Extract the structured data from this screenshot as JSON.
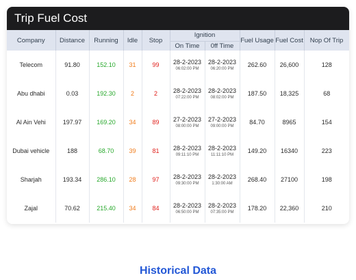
{
  "card": {
    "title": "Trip Fuel Cost"
  },
  "columns": {
    "company": "Company",
    "distance": "Distance",
    "running": "Running",
    "idle": "Idle",
    "stop": "Stop",
    "ignition": "Ignition",
    "on_time": "On Time",
    "off_time": "0ff Time",
    "fuel_usage": "Fuel Usage",
    "fuel_cost": "Fuel Cost",
    "nop_of_trip": "Nop Of Trip"
  },
  "colors": {
    "running": "#27a82b",
    "idle": "#f07b1a",
    "stop": "#e0201b",
    "accent": "#2257d6"
  },
  "rows": [
    {
      "company": "Telecom",
      "distance": "91.80",
      "running": "152.10",
      "idle": "31",
      "stop": "99",
      "on_date": "28-2-2023",
      "on_time": "06:02:00 PM",
      "off_date": "28-2-2023",
      "off_time": "06:20:00 PM",
      "fuel_usage": "262.60",
      "fuel_cost": "26,600",
      "trips": "128"
    },
    {
      "company": "Abu dhabi",
      "distance": "0.03",
      "running": "192.30",
      "idle": "2",
      "stop": "2",
      "on_date": "28-2-2023",
      "on_time": "07:22:00 PM",
      "off_date": "28-2-2023",
      "off_time": "08:02:00 PM",
      "fuel_usage": "187.50",
      "fuel_cost": "18,325",
      "trips": "68"
    },
    {
      "company": "Al Ain Vehi",
      "distance": "197.97",
      "running": "169.20",
      "idle": "34",
      "stop": "89",
      "on_date": "27-2-2023",
      "on_time": "08:00:00 PM",
      "off_date": "27-2-2023",
      "off_time": "09:00:00 PM",
      "fuel_usage": "84.70",
      "fuel_cost": "8965",
      "trips": "154"
    },
    {
      "company": "Dubai vehicle",
      "distance": "188",
      "running": "68.70",
      "idle": "39",
      "stop": "81",
      "on_date": "28-2-2023",
      "on_time": "09:11:10 PM",
      "off_date": "28-2-2023",
      "off_time": "11:11:10 PM",
      "fuel_usage": "149.20",
      "fuel_cost": "16340",
      "trips": "223"
    },
    {
      "company": "Sharjah",
      "distance": "193.34",
      "running": "286.10",
      "idle": "28",
      "stop": "97",
      "on_date": "28-2-2023",
      "on_time": "09:30:00 PM",
      "off_date": "28-2-2023",
      "off_time": "1:30:00 AM",
      "fuel_usage": "268.40",
      "fuel_cost": "27100",
      "trips": "198"
    },
    {
      "company": "Zajal",
      "distance": "70.62",
      "running": "215.40",
      "idle": "34",
      "stop": "84",
      "on_date": "28-2-2023",
      "on_time": "06:50:00 PM",
      "off_date": "28-2-2023",
      "off_time": "07:35:00 PM",
      "fuel_usage": "178.20",
      "fuel_cost": "22,360",
      "trips": "210"
    }
  ],
  "footer": {
    "label": "Historical Data"
  }
}
